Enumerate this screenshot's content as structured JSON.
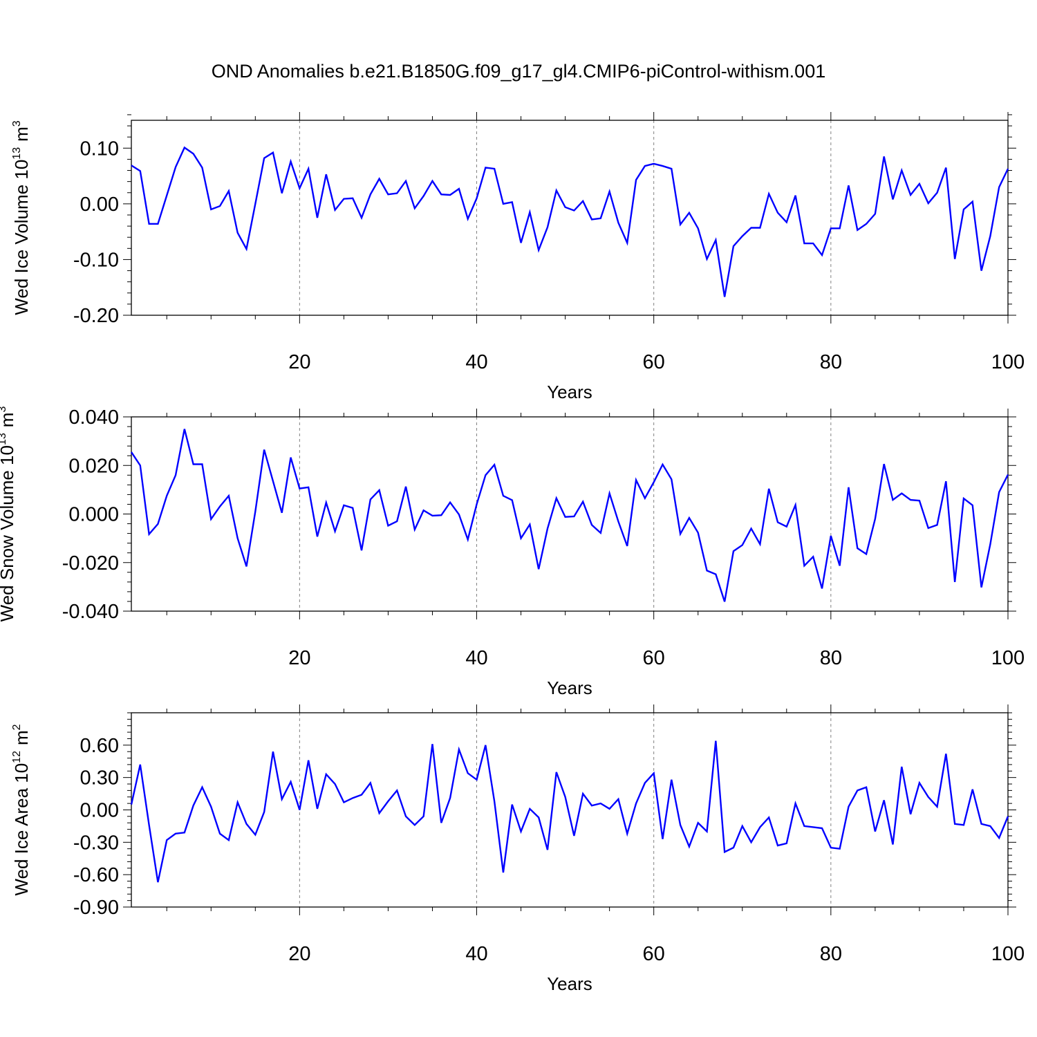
{
  "title": "OND Anomalies b.e21.B1850G.f09_g17_gl4.CMIP6-piControl-withism.001",
  "colors": {
    "line": "#0000ff",
    "axis": "#000000",
    "grid": "#808080"
  },
  "chart_data": [
    {
      "type": "line",
      "ylabel_main": "Wed Ice Volume 10",
      "ylabel_exp": "13",
      "ylabel_unit": "m",
      "ylabel_unit_exp": "3",
      "xlabel": "Years",
      "xlim": [
        1,
        100
      ],
      "ylim": [
        -0.2,
        0.15
      ],
      "yticks": [
        -0.2,
        -0.1,
        0.0,
        0.1
      ],
      "ytick_labels": [
        "-0.20",
        "-0.10",
        "0.00",
        "0.10"
      ],
      "xticks": [
        20,
        40,
        60,
        80,
        100
      ],
      "xtick_labels": [
        "20",
        "40",
        "60",
        "80",
        "100"
      ],
      "grid_x": [
        20,
        40,
        60,
        80
      ],
      "x_start": 1,
      "values": [
        0.069,
        0.059,
        -0.036,
        -0.036,
        0.015,
        0.066,
        0.101,
        0.09,
        0.065,
        -0.01,
        -0.004,
        0.023,
        -0.052,
        -0.081,
        0.0,
        0.082,
        0.092,
        0.019,
        0.076,
        0.028,
        0.063,
        -0.025,
        0.053,
        -0.011,
        0.009,
        0.01,
        -0.025,
        0.017,
        0.045,
        0.017,
        0.019,
        0.041,
        -0.008,
        0.014,
        0.041,
        0.017,
        0.016,
        0.027,
        -0.027,
        0.01,
        0.065,
        0.063,
        0.0,
        0.003,
        -0.07,
        -0.015,
        -0.083,
        -0.042,
        0.024,
        -0.006,
        -0.012,
        0.005,
        -0.028,
        -0.026,
        0.022,
        -0.034,
        -0.07,
        0.043,
        0.068,
        0.072,
        0.068,
        0.063,
        -0.037,
        -0.016,
        -0.044,
        -0.099,
        -0.065,
        -0.167,
        -0.076,
        -0.058,
        -0.043,
        -0.043,
        0.018,
        -0.016,
        -0.033,
        0.015,
        -0.071,
        -0.071,
        -0.092,
        -0.044,
        -0.044,
        0.033,
        -0.047,
        -0.036,
        -0.018,
        0.085,
        0.008,
        0.06,
        0.016,
        0.036,
        0.001,
        0.02,
        0.065,
        -0.099,
        -0.01,
        0.004,
        -0.12,
        -0.058,
        0.03,
        0.063
      ]
    },
    {
      "type": "line",
      "ylabel_main": "Wed Snow Volume 10",
      "ylabel_exp": "13",
      "ylabel_unit": "m",
      "ylabel_unit_exp": "3",
      "xlabel": "Years",
      "xlim": [
        1,
        100
      ],
      "ylim": [
        -0.04,
        0.04
      ],
      "yticks": [
        -0.04,
        -0.02,
        0.0,
        0.02,
        0.04
      ],
      "ytick_labels": [
        "-0.040",
        "-0.020",
        "0.000",
        "0.020",
        "0.040"
      ],
      "xticks": [
        20,
        40,
        60,
        80,
        100
      ],
      "xtick_labels": [
        "20",
        "40",
        "60",
        "80",
        "100"
      ],
      "grid_x": [
        20,
        40,
        60,
        80
      ],
      "x_start": 1,
      "values": [
        0.0255,
        0.02,
        -0.0083,
        -0.0041,
        0.0075,
        0.016,
        0.035,
        0.0205,
        0.0205,
        -0.0021,
        0.0031,
        0.0075,
        -0.01,
        -0.0216,
        0.001,
        0.0265,
        0.0135,
        0.0005,
        0.0233,
        0.0105,
        0.011,
        -0.0093,
        0.0047,
        -0.0071,
        0.0036,
        0.0025,
        -0.015,
        0.006,
        0.0098,
        -0.0048,
        -0.003,
        0.0113,
        -0.0064,
        0.0015,
        -0.0007,
        -0.0005,
        0.0048,
        -0.0002,
        -0.0105,
        0.004,
        0.016,
        0.0203,
        0.0075,
        0.0057,
        -0.01,
        -0.0043,
        -0.0227,
        -0.006,
        0.0065,
        -0.0012,
        -0.001,
        0.0051,
        -0.0045,
        -0.0078,
        0.0085,
        -0.0031,
        -0.0132,
        0.014,
        0.0065,
        0.0131,
        0.0204,
        0.0143,
        -0.0082,
        -0.0016,
        -0.0077,
        -0.0233,
        -0.0248,
        -0.0361,
        -0.0153,
        -0.0128,
        -0.006,
        -0.0124,
        0.0104,
        -0.0034,
        -0.0052,
        0.0037,
        -0.0213,
        -0.0176,
        -0.0307,
        -0.009,
        -0.0213,
        0.011,
        -0.0141,
        -0.0165,
        -0.002,
        0.0206,
        0.0058,
        0.0085,
        0.0058,
        0.0055,
        -0.0058,
        -0.0045,
        0.0135,
        -0.028,
        0.0064,
        0.0036,
        -0.0302,
        -0.0125,
        0.009,
        0.0162
      ]
    },
    {
      "type": "line",
      "ylabel_main": "Wed Ice Area 10",
      "ylabel_exp": "12",
      "ylabel_unit": "m",
      "ylabel_unit_exp": "2",
      "xlabel": "Years",
      "xlim": [
        1,
        100
      ],
      "ylim": [
        -0.9,
        0.9
      ],
      "yticks": [
        -0.9,
        -0.6,
        -0.3,
        0.0,
        0.3,
        0.6
      ],
      "ytick_labels": [
        "-0.90",
        "-0.60",
        "-0.30",
        "0.00",
        "0.30",
        "0.60"
      ],
      "xticks": [
        20,
        40,
        60,
        80,
        100
      ],
      "xtick_labels": [
        "20",
        "40",
        "60",
        "80",
        "100"
      ],
      "grid_x": [
        20,
        40,
        60,
        80
      ],
      "x_start": 1,
      "values": [
        0.05,
        0.42,
        -0.14,
        -0.67,
        -0.28,
        -0.22,
        -0.21,
        0.04,
        0.21,
        0.03,
        -0.22,
        -0.28,
        0.07,
        -0.13,
        -0.23,
        -0.02,
        0.54,
        0.1,
        0.26,
        0.0,
        0.46,
        0.01,
        0.33,
        0.24,
        0.07,
        0.11,
        0.14,
        0.25,
        -0.03,
        0.08,
        0.18,
        -0.06,
        -0.14,
        -0.06,
        0.61,
        -0.12,
        0.11,
        0.56,
        0.34,
        0.28,
        0.6,
        0.08,
        -0.58,
        0.05,
        -0.2,
        0.01,
        -0.07,
        -0.37,
        0.35,
        0.12,
        -0.24,
        0.15,
        0.04,
        0.06,
        0.01,
        0.1,
        -0.22,
        0.06,
        0.25,
        0.34,
        -0.27,
        0.28,
        -0.14,
        -0.34,
        -0.12,
        -0.2,
        0.64,
        -0.39,
        -0.35,
        -0.15,
        -0.3,
        -0.16,
        -0.07,
        -0.33,
        -0.31,
        0.06,
        -0.15,
        -0.16,
        -0.17,
        -0.35,
        -0.36,
        0.03,
        0.18,
        0.21,
        -0.2,
        0.09,
        -0.32,
        0.4,
        -0.04,
        0.25,
        0.12,
        0.03,
        0.52,
        -0.13,
        -0.14,
        0.19,
        -0.13,
        -0.15,
        -0.26,
        -0.06
      ]
    }
  ]
}
